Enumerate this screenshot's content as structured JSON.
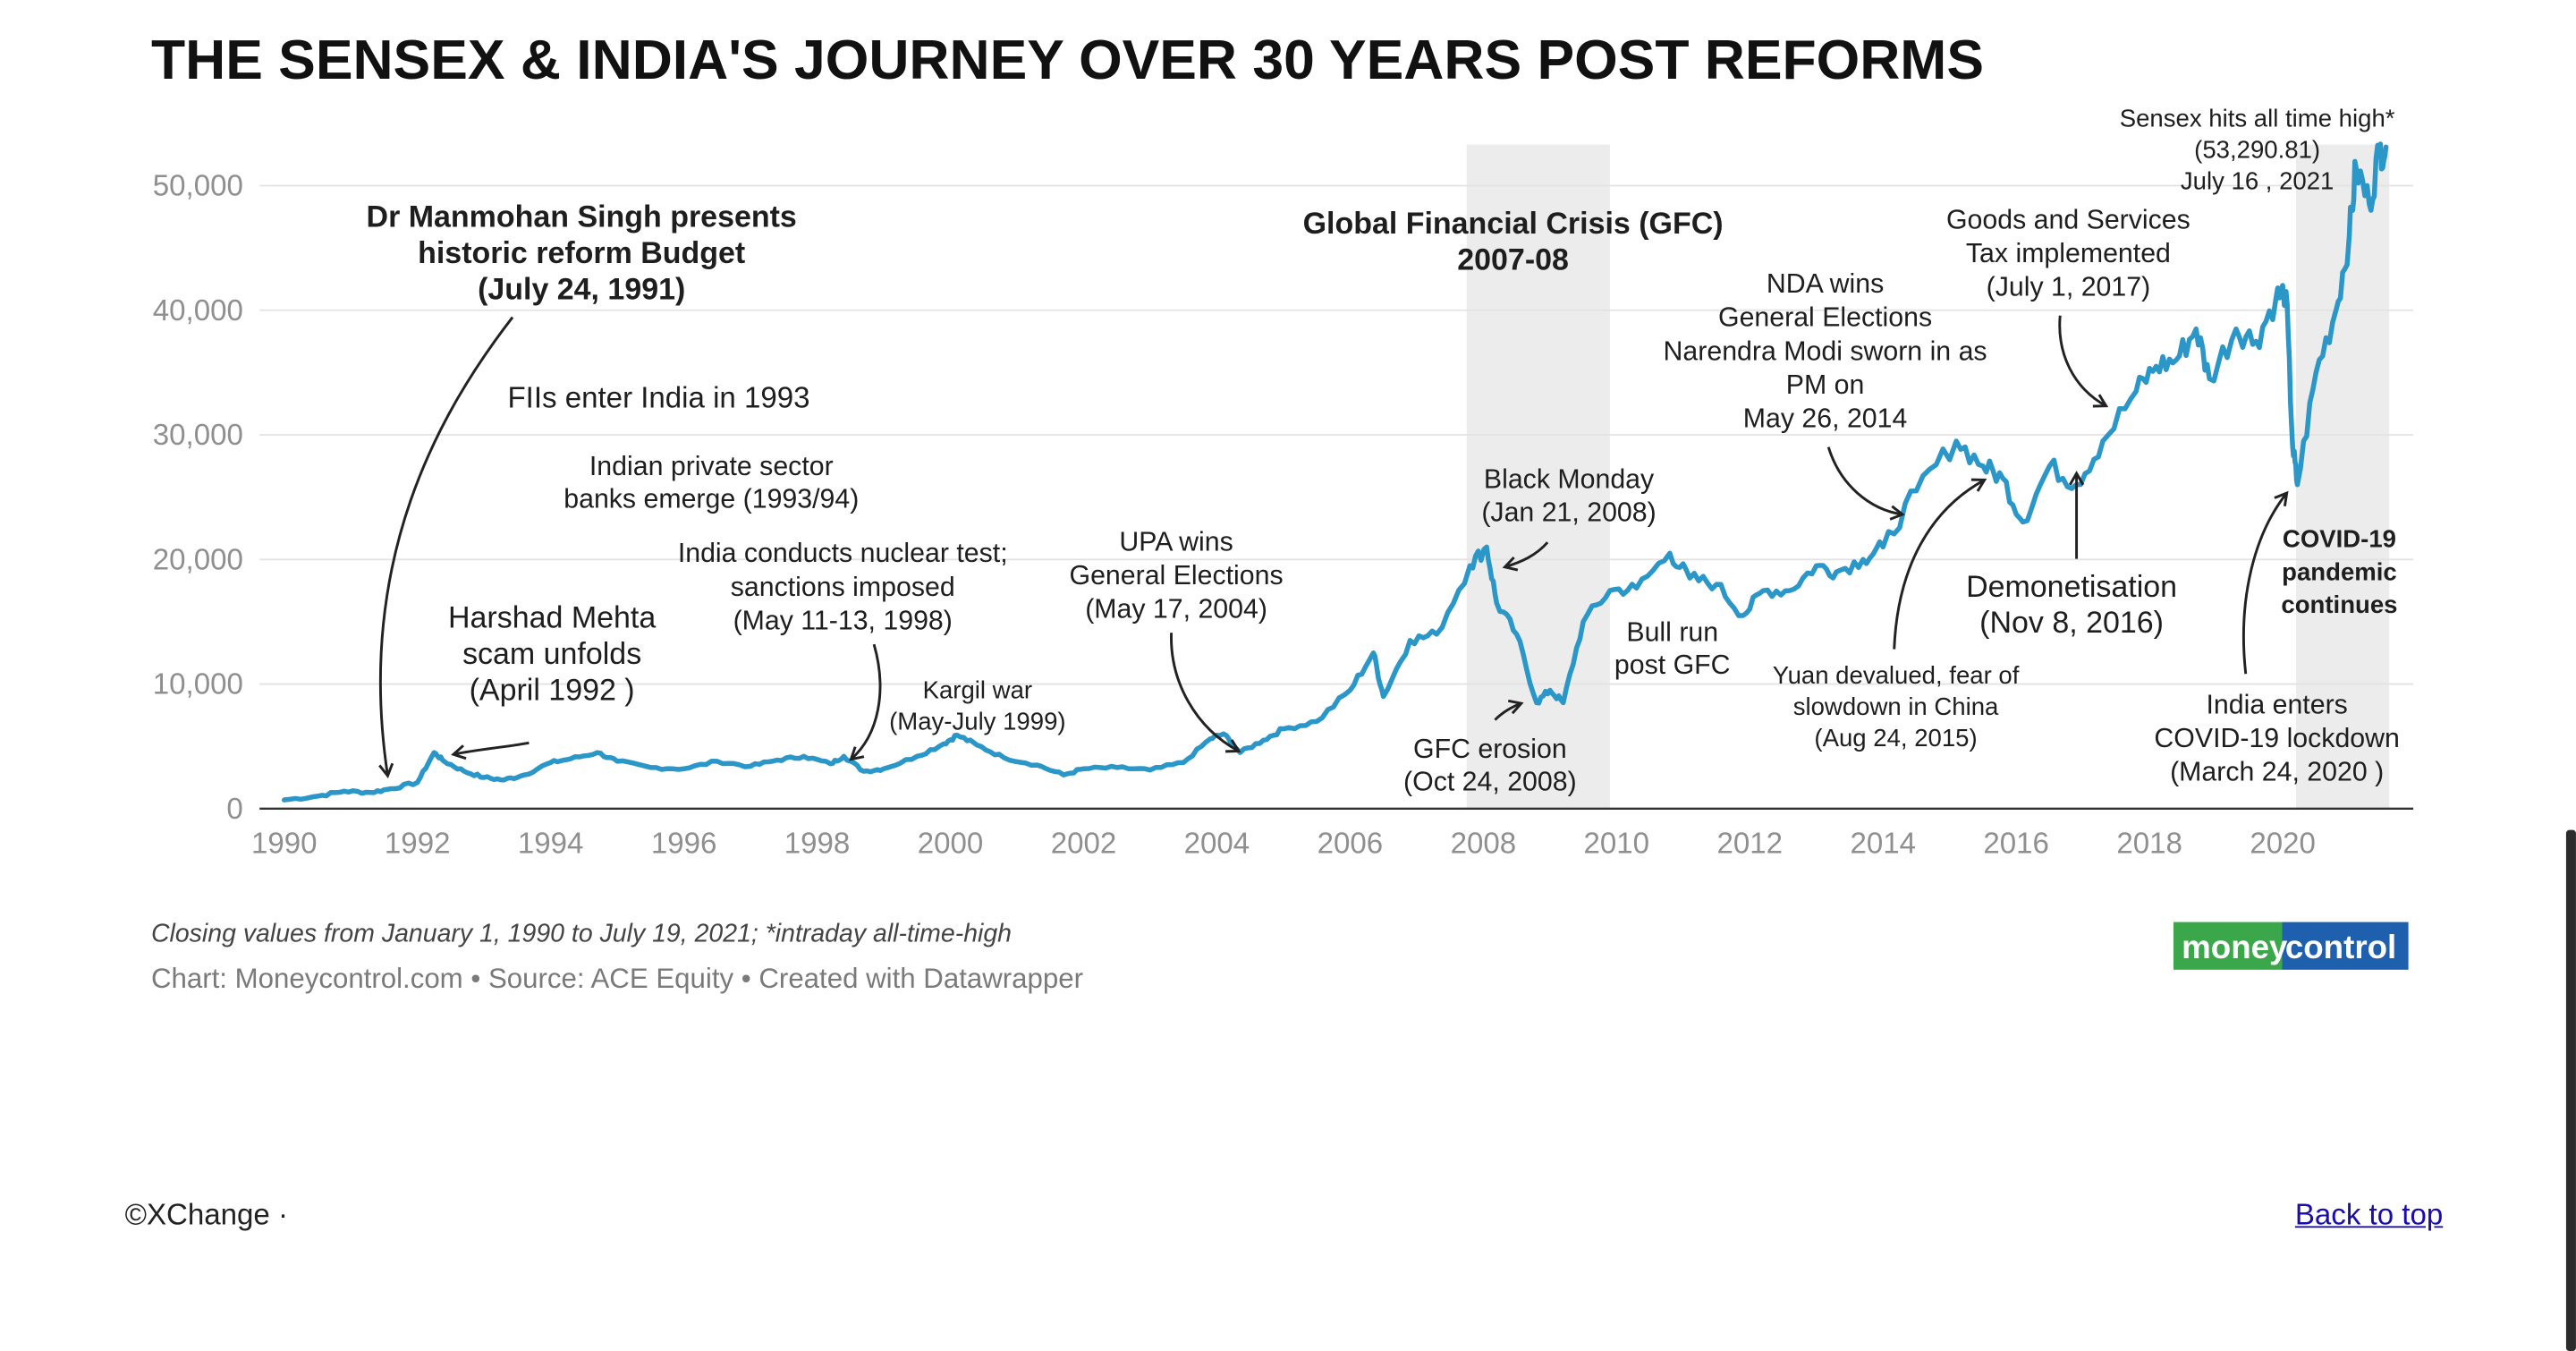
{
  "footer": {
    "left_text": "©XChange ·",
    "back_to_top": "Back to top"
  },
  "colors": {
    "line": "#2a97c8",
    "shade": "#ececec",
    "grid": "#e3e3e3",
    "brand_green": "#3aa84a",
    "brand_blue": "#1e5fae"
  },
  "chart_data": {
    "type": "line",
    "title": "THE SENSEX & INDIA'S JOURNEY OVER 30 YEARS POST REFORMS",
    "xlabel": "",
    "ylabel": "",
    "xlim": [
      1990,
      2021.6
    ],
    "ylim": [
      0,
      53290.81
    ],
    "grid": true,
    "legend": "none",
    "y_ticks": [
      0,
      10000,
      20000,
      30000,
      40000,
      50000
    ],
    "y_tick_labels": [
      "0",
      "10,000",
      "20,000",
      "30,000",
      "40,000",
      "50,000"
    ],
    "x_ticks": [
      1990,
      1992,
      1994,
      1996,
      1998,
      2000,
      2002,
      2004,
      2006,
      2008,
      2010,
      2012,
      2014,
      2016,
      2018,
      2020
    ],
    "x_tick_labels": [
      "1990",
      "1992",
      "1994",
      "1996",
      "1998",
      "2000",
      "2002",
      "2004",
      "2006",
      "2008",
      "2010",
      "2012",
      "2014",
      "2016",
      "2018",
      "2020"
    ],
    "shaded_ranges": [
      [
        2007.75,
        2009.9
      ],
      [
        2020.2,
        2021.6
      ]
    ],
    "series": [
      {
        "values": [
          [
            1990.0,
            700
          ],
          [
            1990.5,
            1000
          ],
          [
            1990.9,
            1400
          ],
          [
            1991.3,
            1300
          ],
          [
            1991.6,
            1600
          ],
          [
            1992.0,
            2100
          ],
          [
            1992.25,
            4500
          ],
          [
            1992.4,
            3800
          ],
          [
            1992.7,
            3000
          ],
          [
            1993.0,
            2500
          ],
          [
            1993.3,
            2300
          ],
          [
            1993.6,
            2700
          ],
          [
            1994.0,
            3700
          ],
          [
            1994.3,
            4000
          ],
          [
            1994.7,
            4500
          ],
          [
            1995.0,
            3800
          ],
          [
            1995.5,
            3300
          ],
          [
            1996.0,
            3200
          ],
          [
            1996.5,
            3800
          ],
          [
            1997.0,
            3400
          ],
          [
            1997.4,
            3900
          ],
          [
            1997.8,
            4200
          ],
          [
            1998.2,
            3600
          ],
          [
            1998.4,
            4200
          ],
          [
            1998.7,
            3000
          ],
          [
            1999.0,
            3200
          ],
          [
            1999.5,
            4200
          ],
          [
            1999.9,
            5200
          ],
          [
            2000.1,
            5900
          ],
          [
            2000.4,
            5100
          ],
          [
            2000.8,
            4100
          ],
          [
            2001.3,
            3500
          ],
          [
            2001.7,
            2700
          ],
          [
            2002.0,
            3200
          ],
          [
            2002.5,
            3300
          ],
          [
            2003.0,
            3100
          ],
          [
            2003.5,
            3700
          ],
          [
            2003.9,
            5600
          ],
          [
            2004.1,
            6000
          ],
          [
            2004.35,
            4500
          ],
          [
            2004.7,
            5500
          ],
          [
            2005.0,
            6400
          ],
          [
            2005.5,
            7000
          ],
          [
            2006.0,
            9500
          ],
          [
            2006.35,
            12500
          ],
          [
            2006.5,
            9000
          ],
          [
            2006.9,
            13500
          ],
          [
            2007.3,
            14000
          ],
          [
            2007.8,
            19500
          ],
          [
            2008.05,
            21000
          ],
          [
            2008.2,
            16500
          ],
          [
            2008.5,
            14000
          ],
          [
            2008.8,
            8500
          ],
          [
            2009.0,
            9500
          ],
          [
            2009.2,
            8500
          ],
          [
            2009.5,
            15000
          ],
          [
            2009.9,
            17500
          ],
          [
            2010.3,
            17700
          ],
          [
            2010.8,
            20500
          ],
          [
            2011.1,
            18500
          ],
          [
            2011.5,
            18000
          ],
          [
            2011.9,
            15500
          ],
          [
            2012.2,
            17500
          ],
          [
            2012.6,
            17500
          ],
          [
            2013.0,
            19500
          ],
          [
            2013.3,
            19000
          ],
          [
            2013.7,
            20000
          ],
          [
            2014.0,
            21000
          ],
          [
            2014.5,
            25500
          ],
          [
            2015.1,
            29500
          ],
          [
            2015.5,
            27500
          ],
          [
            2015.8,
            26500
          ],
          [
            2016.1,
            23000
          ],
          [
            2016.5,
            27500
          ],
          [
            2016.9,
            26000
          ],
          [
            2017.3,
            29500
          ],
          [
            2017.8,
            33500
          ],
          [
            2018.1,
            35500
          ],
          [
            2018.4,
            36000
          ],
          [
            2018.7,
            38500
          ],
          [
            2018.9,
            34500
          ],
          [
            2019.3,
            38500
          ],
          [
            2019.6,
            37500
          ],
          [
            2019.9,
            41000
          ],
          [
            2020.05,
            41500
          ],
          [
            2020.15,
            29000
          ],
          [
            2020.22,
            26000
          ],
          [
            2020.5,
            35000
          ],
          [
            2020.8,
            40000
          ],
          [
            2021.0,
            46000
          ],
          [
            2021.1,
            51500
          ],
          [
            2021.3,
            48500
          ],
          [
            2021.45,
            52800
          ],
          [
            2021.55,
            53100
          ]
        ]
      }
    ],
    "annotations": [
      {
        "lines": [
          "Dr Manmohan Singh presents",
          "historic reform Budget",
          "(July 24, 1991)"
        ],
        "bold": true
      },
      {
        "lines": [
          "FIIs enter India in 1993"
        ]
      },
      {
        "lines": [
          "Indian private sector",
          "banks emerge (1993/94)"
        ]
      },
      {
        "lines": [
          "Harshad Mehta",
          "scam unfolds",
          "(April 1992 )"
        ]
      },
      {
        "lines": [
          "India conducts nuclear test;",
          "sanctions imposed",
          "(May 11-13, 1998)"
        ]
      },
      {
        "lines": [
          "Kargil war",
          "(May-July 1999)"
        ]
      },
      {
        "lines": [
          "UPA wins",
          "General Elections",
          "(May 17, 2004)"
        ]
      },
      {
        "lines": [
          "Global Financial Crisis (GFC)",
          "2007-08"
        ],
        "bold": true
      },
      {
        "lines": [
          "Black Monday",
          "(Jan 21, 2008)"
        ]
      },
      {
        "lines": [
          "GFC erosion",
          "(Oct 24, 2008)"
        ]
      },
      {
        "lines": [
          "Bull run",
          "post GFC"
        ]
      },
      {
        "lines": [
          "NDA wins",
          "General Elections",
          "Narendra Modi sworn in as",
          "PM on",
          "May 26, 2014"
        ]
      },
      {
        "lines": [
          "Yuan devalued, fear of",
          "slowdown in China",
          "(Aug 24, 2015)"
        ]
      },
      {
        "lines": [
          "Demonetisation",
          "(Nov 8, 2016)"
        ]
      },
      {
        "lines": [
          "Goods and Services",
          "Tax implemented",
          "(July 1, 2017)"
        ]
      },
      {
        "lines": [
          "Sensex hits all time high*",
          "(53,290.81)",
          "July 16 , 2021"
        ]
      },
      {
        "lines": [
          "COVID-19",
          "pandemic",
          "continues"
        ],
        "bold": true
      },
      {
        "lines": [
          "India enters",
          "COVID-19 lockdown",
          "(March 24, 2020 )"
        ]
      }
    ],
    "notes": "Closing values from January 1, 1990 to July 19, 2021; *intraday all-time-high",
    "credits": "Chart: Moneycontrol.com • Source: ACE Equity • Created with Datawrapper",
    "logo": {
      "part1": "money",
      "part2": "control"
    }
  }
}
